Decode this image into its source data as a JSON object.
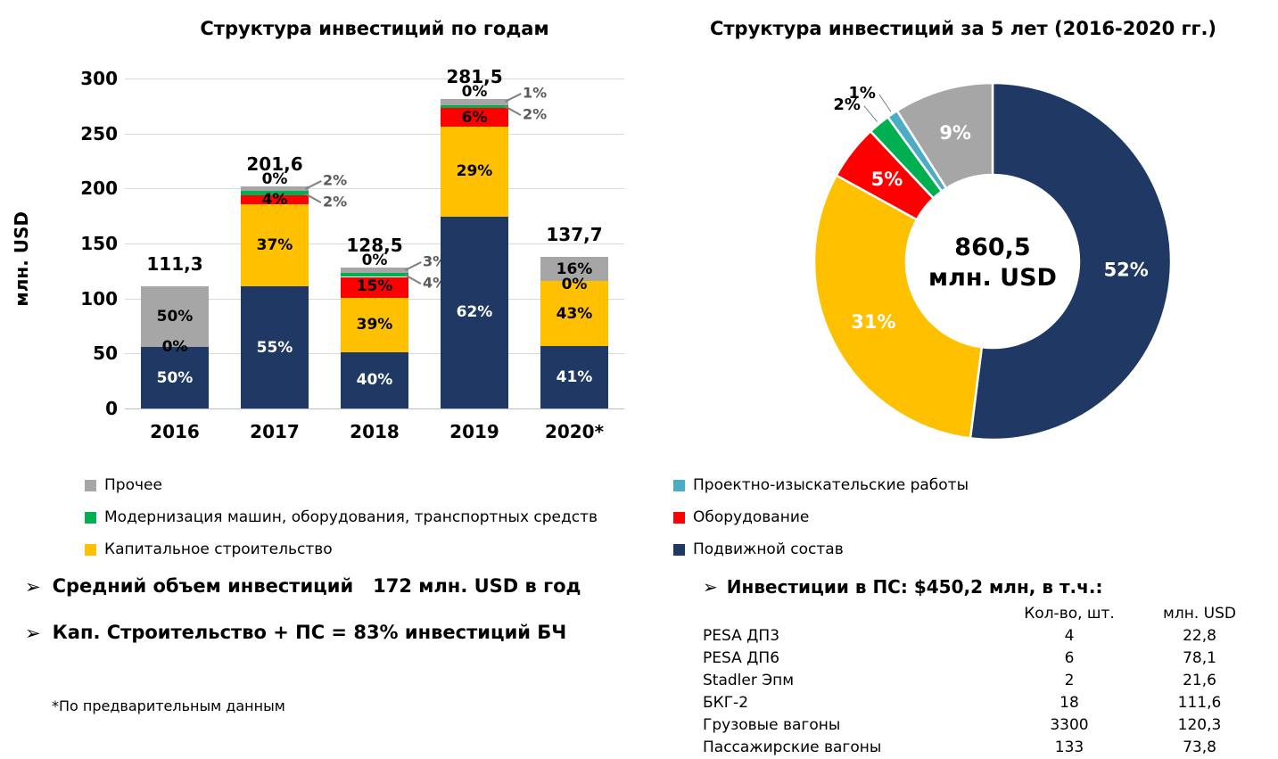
{
  "colors": {
    "navy": "#1F3864",
    "yellow": "#FFC000",
    "red": "#FF0000",
    "green": "#00B050",
    "lightblue": "#4BACC6",
    "gray": "#A6A6A6",
    "grid": "#D9D9D9",
    "axis": "#BFBFBF"
  },
  "chart_data": [
    {
      "type": "bar",
      "stacked": true,
      "title": "Структура инвестиций по годам",
      "ylabel": "млн. USD",
      "ylim": [
        0,
        300
      ],
      "yticks": [
        "0",
        "50",
        "100",
        "150",
        "200",
        "250",
        "300"
      ],
      "grid": true,
      "categories": [
        "2016",
        "2017",
        "2018",
        "2019",
        "2020*"
      ],
      "totals": [
        111.3,
        201.6,
        128.5,
        281.5,
        137.7
      ],
      "total_labels": [
        "111,3",
        "201,6",
        "128,5",
        "281,5",
        "137,7"
      ],
      "series": [
        {
          "name": "Подвижной состав",
          "color": "navy",
          "pct": [
            50,
            55,
            40,
            62,
            41
          ]
        },
        {
          "name": "Капитальное строительство",
          "color": "yellow",
          "pct": [
            0,
            37,
            39,
            29,
            43
          ]
        },
        {
          "name": "Оборудование",
          "color": "red",
          "pct": [
            0,
            4,
            15,
            6,
            0
          ]
        },
        {
          "name": "Модернизация машин, оборудования, транспортных средств",
          "color": "green",
          "pct": [
            0,
            2,
            3,
            1,
            0
          ]
        },
        {
          "name": "Проектно-изыскательские работы",
          "color": "lightblue",
          "pct": [
            0,
            0,
            0,
            0,
            0
          ]
        },
        {
          "name": "Прочее",
          "color": "gray",
          "pct": [
            50,
            2,
            4,
            2,
            16
          ]
        }
      ],
      "bar_labels": [
        {
          "inside": [
            {
              "text": "50%",
              "at": 25,
              "white": true
            },
            {
              "text": "0%",
              "at": 50,
              "white": false
            },
            {
              "text": "50%",
              "at": 75,
              "white": false
            }
          ],
          "top": "",
          "callouts": []
        },
        {
          "inside": [
            {
              "text": "55%",
              "at": 27.5,
              "white": true
            },
            {
              "text": "37%",
              "at": 73.5,
              "white": false
            },
            {
              "text": "4%",
              "at": 94,
              "white": false
            }
          ],
          "top": "0%",
          "callouts": [
            "2%",
            "2%"
          ]
        },
        {
          "inside": [
            {
              "text": "40%",
              "at": 20,
              "white": true
            },
            {
              "text": "39%",
              "at": 59.5,
              "white": false
            },
            {
              "text": "15%",
              "at": 86.5,
              "white": false
            }
          ],
          "top": "0%",
          "callouts": [
            "3%",
            "4%"
          ]
        },
        {
          "inside": [
            {
              "text": "62%",
              "at": 31,
              "white": true
            },
            {
              "text": "29%",
              "at": 76.5,
              "white": false
            },
            {
              "text": "6%",
              "at": 94,
              "white": false
            }
          ],
          "top": "0%",
          "callouts": [
            "1%",
            "2%"
          ]
        },
        {
          "inside": [
            {
              "text": "41%",
              "at": 20.5,
              "white": true
            },
            {
              "text": "43%",
              "at": 62.5,
              "white": false
            },
            {
              "text": "0%",
              "at": 82,
              "white": false
            },
            {
              "text": "16%",
              "at": 92,
              "white": false
            }
          ],
          "top": "",
          "callouts": []
        }
      ]
    },
    {
      "type": "donut",
      "title": "Структура инвестиций за 5 лет (2016-2020 гг.)",
      "center_value": "860,5",
      "center_unit": "млн. USD",
      "slices": [
        {
          "name": "Подвижной состав",
          "pct": 52,
          "color": "navy",
          "label": "52%",
          "inside": true
        },
        {
          "name": "Капитальное строительство",
          "pct": 31,
          "color": "yellow",
          "label": "31%",
          "inside": true
        },
        {
          "name": "Оборудование",
          "pct": 5,
          "color": "red",
          "label": "5%",
          "inside": true
        },
        {
          "name": "Модернизация машин, оборудования, транспортных средств",
          "pct": 2,
          "color": "green",
          "label": "2%",
          "inside": false
        },
        {
          "name": "Проектно-изыскательские работы",
          "pct": 1,
          "color": "lightblue",
          "label": "1%",
          "inside": false
        },
        {
          "name": "Прочее",
          "pct": 9,
          "color": "gray",
          "label": "9%",
          "inside": true
        }
      ]
    }
  ],
  "legend": {
    "left": [
      {
        "color": "gray",
        "label": "Прочее"
      },
      {
        "color": "green",
        "label": "Модернизация машин, оборудования, транспортных средств"
      },
      {
        "color": "yellow",
        "label": "Капитальное строительство"
      }
    ],
    "right": [
      {
        "color": "lightblue",
        "label": "Проектно-изыскательские работы"
      },
      {
        "color": "red",
        "label": "Оборудование"
      },
      {
        "color": "navy",
        "label": "Подвижной состав"
      }
    ]
  },
  "notes": {
    "marker": "➢",
    "bullet1": "Средний объем инвестиций   172 млн. USD в год",
    "bullet2": "Кап. Строительство + ПС = 83% инвестиций БЧ",
    "footnote": "*По предварительным данным"
  },
  "ps_table": {
    "heading": "Инвестиции в ПС: $450,2 млн, в т.ч.:",
    "col_qty": "Кол-во, шт.",
    "col_usd": "млн. USD",
    "rows": [
      {
        "name": "PESA ДП3",
        "qty": "4",
        "usd": "22,8"
      },
      {
        "name": "PESA ДП6",
        "qty": "6",
        "usd": "78,1"
      },
      {
        "name": "Stadler Эпм",
        "qty": "2",
        "usd": "21,6"
      },
      {
        "name": "БКГ-2",
        "qty": "18",
        "usd": "111,6"
      },
      {
        "name": "Грузовые вагоны",
        "qty": "3300",
        "usd": "120,3"
      },
      {
        "name": "Пассажирские вагоны",
        "qty": "133",
        "usd": "73,8"
      }
    ]
  }
}
